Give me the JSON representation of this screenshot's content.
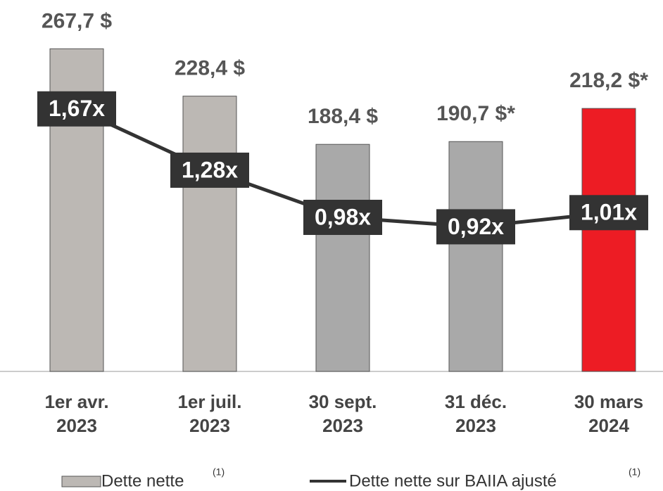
{
  "chart_data": {
    "type": "bar_line",
    "categories": [
      [
        "1er avr.",
        "2023"
      ],
      [
        "1er juil.",
        "2023"
      ],
      [
        "30 sept.",
        "2023"
      ],
      [
        "31 déc.",
        "2023"
      ],
      [
        "30 mars",
        "2024"
      ]
    ],
    "ylim": [
      0,
      300
    ],
    "y2lim": [
      0,
      2.3
    ],
    "series": [
      {
        "name": "Dette nette",
        "superscript": "(1)",
        "type": "bar",
        "color": "#bcb8b4",
        "colors": [
          "#bcb8b4",
          "#bcb8b4",
          "#a9a9a9",
          "#a9a9a9",
          "#ed1c24"
        ],
        "values": [
          267.7,
          228.4,
          188.4,
          190.7,
          218.2
        ],
        "value_labels": [
          "267,7 $",
          "228,4 $",
          "188,4 $",
          "190,7 $*",
          "218,2 $*"
        ]
      },
      {
        "name": "Dette nette sur BAIIA ajusté",
        "superscript": "(1)",
        "type": "line",
        "axis": "y2",
        "color": "#333333",
        "values": [
          1.67,
          1.28,
          0.98,
          0.92,
          1.01
        ],
        "value_labels": [
          "1,67x",
          "1,28x",
          "0,98x",
          "0,92x",
          "1,01x"
        ]
      }
    ]
  }
}
